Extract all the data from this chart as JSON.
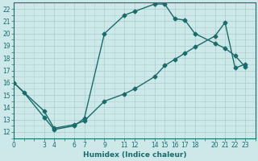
{
  "xlabel": "Humidex (Indice chaleur)",
  "background_color": "#cde8e8",
  "grid_color": "#b0d0d0",
  "line_color": "#1a6b6b",
  "xlim": [
    0,
    24
  ],
  "ylim": [
    11.5,
    22.5
  ],
  "xticks": [
    0,
    3,
    4,
    6,
    7,
    9,
    11,
    12,
    14,
    15,
    16,
    17,
    18,
    20,
    21,
    22,
    23
  ],
  "yticks": [
    12,
    13,
    14,
    15,
    16,
    17,
    18,
    19,
    20,
    21,
    22
  ],
  "line1_x": [
    0,
    1,
    3,
    4,
    6,
    7,
    9,
    11,
    12,
    14,
    15,
    16,
    17,
    18,
    20,
    21,
    22,
    23
  ],
  "line1_y": [
    16,
    15.2,
    13.2,
    12.2,
    12.5,
    13.1,
    20.0,
    21.5,
    21.8,
    22.4,
    22.4,
    21.2,
    21.1,
    20.0,
    19.2,
    18.8,
    18.2,
    17.3
  ],
  "line2_x": [
    0,
    3,
    4,
    6,
    7,
    9,
    11,
    12,
    14,
    15,
    16,
    17,
    18,
    20,
    21,
    22,
    23
  ],
  "line2_y": [
    16,
    13.7,
    12.3,
    12.6,
    12.9,
    14.5,
    15.1,
    15.5,
    16.5,
    17.4,
    17.9,
    18.4,
    18.9,
    19.8,
    20.9,
    17.2,
    17.5
  ],
  "tick_fontsize": 5.5,
  "xlabel_fontsize": 6.5,
  "marker_size": 2.5,
  "line_width": 1.0
}
